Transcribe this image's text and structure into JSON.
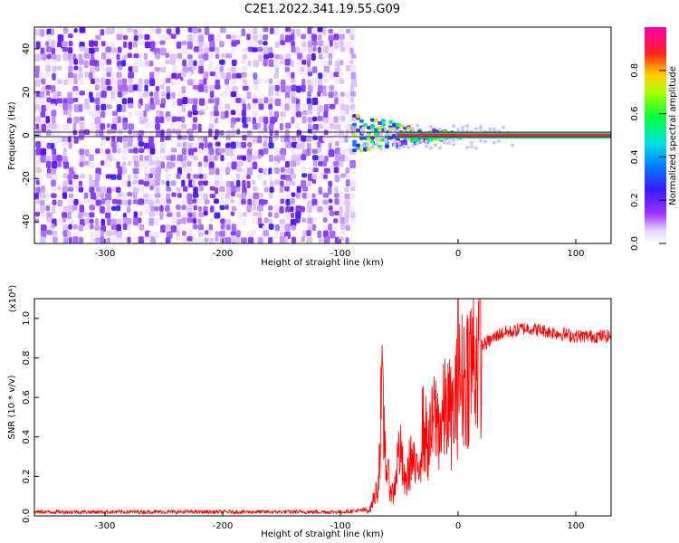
{
  "figure_title": "C2E1.2022.341.19.55.G09",
  "chart_data": [
    {
      "type": "heatmap",
      "title": "",
      "xlabel": "Height of straight line (km)",
      "ylabel": "Frequency (Hz)",
      "xlim": [
        -360,
        130
      ],
      "ylim": [
        -50,
        50
      ],
      "x_ticks": [
        "-300",
        "-200",
        "-100",
        "0",
        "100"
      ],
      "y_ticks": [
        "-40",
        "-20",
        "0",
        "20",
        "40"
      ],
      "colorbar": {
        "label": "Normalized spectral amplitude",
        "range": [
          0.0,
          1.0
        ],
        "ticks": [
          "0.0",
          "0.2",
          "0.4",
          "0.6",
          "0.8"
        ],
        "colormap": "white-purple-blue-cyan-green-yellow-red-magenta"
      },
      "features": {
        "noise_region_x": [
          -360,
          -90
        ],
        "signal_start_x": -90,
        "signal_frequency_hz": 0,
        "reference_lines_hz": [
          -1.5,
          1.5
        ]
      }
    },
    {
      "type": "line",
      "title": "",
      "xlabel": "Height of straight line (km)",
      "ylabel": "SNR (10 * v/v)",
      "y_scale_label": "(x10⁴)",
      "xlim": [
        -360,
        130
      ],
      "ylim": [
        0,
        1.1
      ],
      "x_ticks": [
        "-300",
        "-200",
        "-100",
        "0",
        "100"
      ],
      "y_ticks": [
        "0.0",
        "0.2",
        "0.4",
        "0.6",
        "0.8",
        "1.0"
      ],
      "color": "#ff0000",
      "series": [
        {
          "x": [
            -360,
            -100,
            -75,
            -68,
            -65,
            -60,
            -55,
            -50,
            -45,
            -40,
            -35,
            -30,
            -25,
            -20,
            -15,
            -10,
            -5,
            -1,
            0,
            5,
            10,
            15,
            20,
            25,
            30,
            35,
            40,
            45,
            55,
            60,
            70,
            80,
            90,
            100,
            110,
            120,
            130
          ],
          "values": [
            0.02,
            0.02,
            0.03,
            0.15,
            0.6,
            0.2,
            0.1,
            0.35,
            0.15,
            0.3,
            0.2,
            0.45,
            0.35,
            0.5,
            0.45,
            0.55,
            0.5,
            0.6,
            0.65,
            0.7,
            0.77,
            0.82,
            0.86,
            0.88,
            0.9,
            0.92,
            0.93,
            0.93,
            0.95,
            0.95,
            0.94,
            0.93,
            0.92,
            0.91,
            0.91,
            0.91,
            0.91
          ]
        }
      ]
    }
  ]
}
